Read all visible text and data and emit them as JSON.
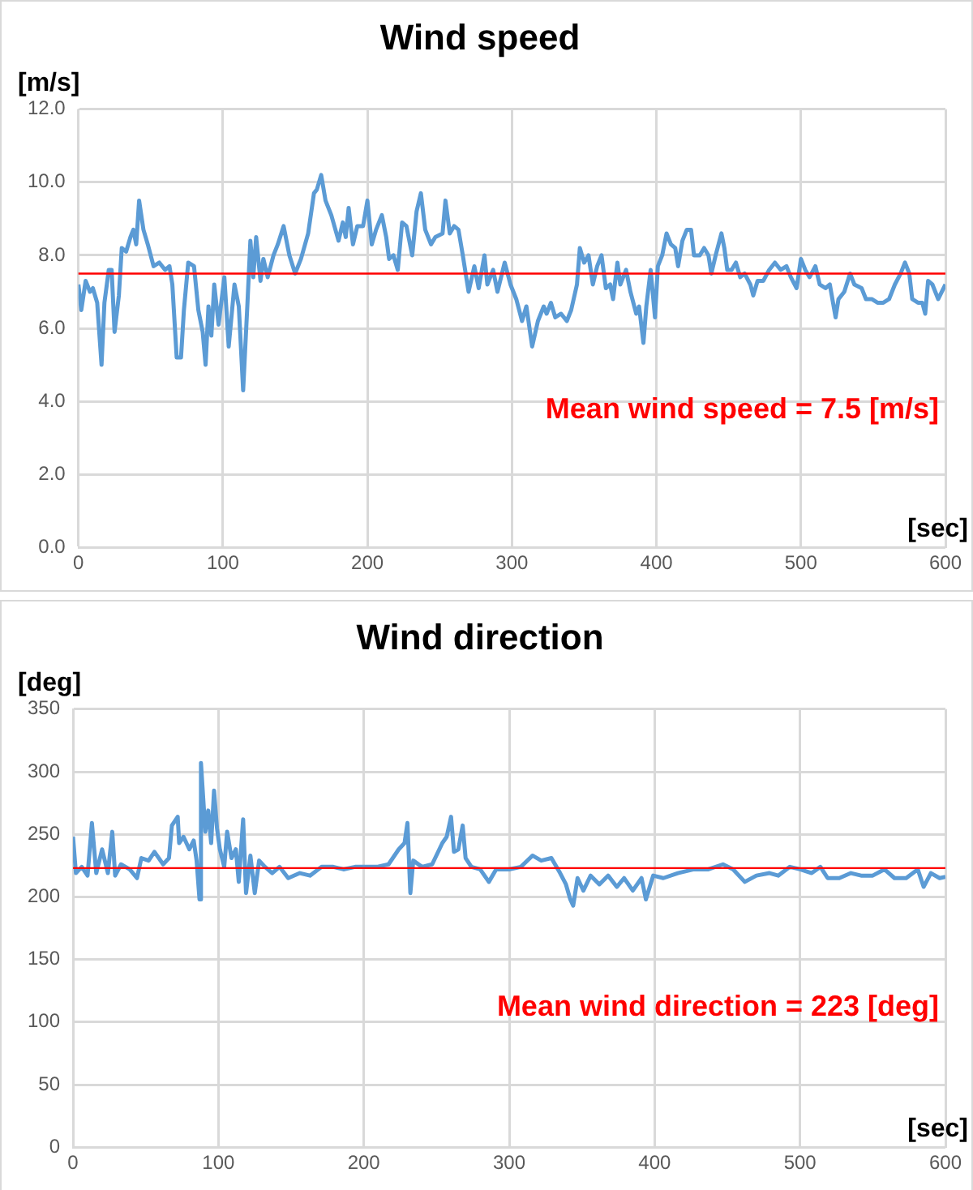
{
  "chart_data": [
    {
      "type": "line",
      "title": "Wind speed",
      "ylabel": "[m/s]",
      "xlabel": "[sec]",
      "color": "#5b9bd5",
      "marker": "none",
      "grid": true,
      "x": [
        0,
        2,
        5,
        8,
        10,
        13,
        16,
        18,
        21,
        23,
        25,
        28,
        30,
        33,
        36,
        38,
        40,
        42,
        45,
        48,
        52,
        56,
        60,
        63,
        65,
        68,
        71,
        73,
        76,
        80,
        83,
        86,
        88,
        90,
        92,
        94,
        97,
        101,
        104,
        108,
        111,
        114,
        117,
        119,
        121,
        123,
        126,
        128,
        131,
        135,
        138,
        142,
        146,
        150,
        154,
        159,
        163,
        165,
        168,
        171,
        175,
        180,
        183,
        185,
        187,
        190,
        193,
        197,
        200,
        203,
        206,
        210,
        213,
        215,
        218,
        221,
        224,
        227,
        231,
        234,
        237,
        240,
        244,
        247,
        252,
        254,
        257,
        260,
        263,
        266,
        270,
        274,
        277,
        281,
        283,
        287,
        290,
        295,
        299,
        303,
        307,
        310,
        314,
        318,
        322,
        324,
        327,
        330,
        334,
        338,
        341,
        345,
        347,
        350,
        353,
        356,
        359,
        362,
        365,
        368,
        370,
        373,
        375,
        379,
        382,
        386,
        388,
        391,
        393,
        396,
        399,
        401,
        404,
        407,
        410,
        413,
        415,
        418,
        421,
        424,
        426,
        430,
        433,
        436,
        438,
        441,
        445,
        447,
        449,
        452,
        455,
        458,
        461,
        465,
        467,
        470,
        474,
        478,
        482,
        486,
        490,
        493,
        497,
        500,
        503,
        506,
        510,
        513,
        517,
        520,
        524,
        526,
        530,
        534,
        537,
        542,
        545,
        549,
        553,
        557,
        561,
        565,
        569,
        572,
        575,
        577,
        581,
        584,
        586,
        588,
        591,
        595,
        600
      ],
      "values": [
        7.2,
        6.5,
        7.3,
        7.0,
        7.1,
        6.7,
        5.0,
        6.7,
        7.6,
        7.6,
        5.9,
        6.9,
        8.2,
        8.1,
        8.5,
        8.7,
        8.3,
        9.5,
        8.7,
        8.3,
        7.7,
        7.8,
        7.6,
        7.7,
        7.2,
        5.2,
        5.2,
        6.5,
        7.8,
        7.7,
        6.5,
        5.9,
        5.0,
        6.6,
        5.8,
        7.2,
        6.1,
        7.4,
        5.5,
        7.2,
        6.6,
        4.3,
        6.7,
        8.4,
        7.4,
        8.5,
        7.3,
        7.9,
        7.4,
        8.0,
        8.3,
        8.8,
        8.0,
        7.5,
        7.9,
        8.6,
        9.7,
        9.8,
        10.2,
        9.5,
        9.1,
        8.4,
        8.9,
        8.5,
        9.3,
        8.3,
        8.8,
        8.8,
        9.5,
        8.3,
        8.7,
        9.1,
        8.5,
        7.9,
        8.0,
        7.6,
        8.9,
        8.8,
        8.0,
        9.2,
        9.7,
        8.7,
        8.3,
        8.5,
        8.6,
        9.5,
        8.6,
        8.8,
        8.7,
        8.0,
        7.0,
        7.7,
        7.1,
        8.0,
        7.2,
        7.6,
        7.0,
        7.8,
        7.2,
        6.8,
        6.2,
        6.6,
        5.5,
        6.2,
        6.6,
        6.4,
        6.7,
        6.3,
        6.4,
        6.2,
        6.5,
        7.2,
        8.2,
        7.8,
        8.0,
        7.2,
        7.7,
        8.0,
        7.1,
        7.2,
        6.8,
        7.8,
        7.2,
        7.6,
        7.0,
        6.4,
        6.6,
        5.6,
        6.6,
        7.6,
        6.3,
        7.7,
        8.0,
        8.6,
        8.3,
        8.2,
        7.7,
        8.4,
        8.7,
        8.7,
        8.0,
        8.0,
        8.2,
        8.0,
        7.5,
        8.0,
        8.6,
        8.2,
        7.6,
        7.6,
        7.8,
        7.4,
        7.5,
        7.2,
        6.9,
        7.3,
        7.3,
        7.6,
        7.8,
        7.6,
        7.7,
        7.4,
        7.1,
        7.9,
        7.6,
        7.4,
        7.7,
        7.2,
        7.1,
        7.2,
        6.3,
        6.8,
        7.0,
        7.5,
        7.2,
        7.1,
        6.8,
        6.8,
        6.7,
        6.7,
        6.8,
        7.2,
        7.5,
        7.8,
        7.5,
        6.8,
        6.7,
        6.7,
        6.4,
        7.3,
        7.2,
        6.8,
        7.2
      ],
      "xlim": [
        0,
        600
      ],
      "xticks": [
        0,
        100,
        200,
        300,
        400,
        500,
        600
      ],
      "ylim": [
        0,
        12
      ],
      "yticks": [
        {
          "value": 0,
          "label": "0.0"
        },
        {
          "value": 2,
          "label": "2.0"
        },
        {
          "value": 4,
          "label": "4.0"
        },
        {
          "value": 6,
          "label": "6.0"
        },
        {
          "value": 8,
          "label": "8.0"
        },
        {
          "value": 10,
          "label": "10.0"
        },
        {
          "value": 12,
          "label": "12.0"
        }
      ],
      "ref_lines": [
        {
          "axis": "y",
          "value": 7.5,
          "label": "Mean wind speed = 7.5 [m/s]",
          "color": "#ff0000"
        }
      ]
    },
    {
      "type": "line",
      "title": "Wind direction",
      "ylabel": "[deg]",
      "xlabel": "[sec]",
      "color": "#5b9bd5",
      "marker": "none",
      "grid": true,
      "x": [
        0,
        2,
        6,
        10,
        13,
        16,
        20,
        24,
        27,
        29,
        33,
        39,
        44,
        47,
        52,
        56,
        62,
        66,
        68,
        72,
        73,
        76,
        80,
        83,
        85,
        87,
        88,
        91,
        93,
        95,
        97,
        99,
        101,
        104,
        106,
        109,
        112,
        114,
        117,
        119,
        122,
        125,
        128,
        132,
        137,
        142,
        148,
        156,
        163,
        171,
        179,
        186,
        194,
        202,
        209,
        217,
        224,
        228,
        230,
        232,
        234,
        240,
        247,
        254,
        257,
        260,
        262,
        265,
        268,
        270,
        274,
        280,
        286,
        291,
        297,
        300,
        308,
        316,
        322,
        329,
        335,
        339,
        342,
        344,
        347,
        351,
        356,
        362,
        368,
        374,
        379,
        385,
        391,
        394,
        399,
        406,
        416,
        427,
        437,
        447,
        454,
        462,
        470,
        479,
        485,
        493,
        500,
        508,
        514,
        519,
        527,
        535,
        542,
        550,
        558,
        565,
        573,
        581,
        585,
        590,
        596,
        600
      ],
      "values": [
        248,
        219,
        224,
        217,
        259,
        219,
        238,
        219,
        252,
        217,
        226,
        222,
        215,
        231,
        229,
        236,
        226,
        231,
        257,
        264,
        243,
        248,
        238,
        245,
        229,
        198,
        307,
        252,
        269,
        243,
        285,
        255,
        238,
        224,
        252,
        231,
        238,
        212,
        262,
        203,
        233,
        203,
        229,
        224,
        219,
        224,
        215,
        219,
        217,
        224,
        224,
        222,
        224,
        224,
        224,
        226,
        238,
        243,
        259,
        203,
        229,
        224,
        226,
        243,
        248,
        264,
        236,
        238,
        257,
        231,
        224,
        222,
        212,
        222,
        222,
        222,
        224,
        233,
        229,
        231,
        219,
        210,
        198,
        193,
        215,
        205,
        217,
        210,
        217,
        208,
        215,
        205,
        215,
        198,
        217,
        215,
        219,
        222,
        222,
        226,
        222,
        212,
        217,
        219,
        217,
        224,
        222,
        219,
        224,
        215,
        215,
        219,
        217,
        217,
        222,
        215,
        215,
        222,
        208,
        219,
        215,
        216
      ],
      "xlim": [
        0,
        600
      ],
      "xticks": [
        0,
        100,
        200,
        300,
        400,
        500,
        600
      ],
      "ylim": [
        0,
        350
      ],
      "yticks": [
        0,
        50,
        100,
        150,
        200,
        250,
        300,
        350
      ],
      "ref_lines": [
        {
          "axis": "y",
          "value": 223,
          "label": "Mean wind direction = 223 [deg]",
          "color": "#ff0000"
        }
      ]
    }
  ]
}
